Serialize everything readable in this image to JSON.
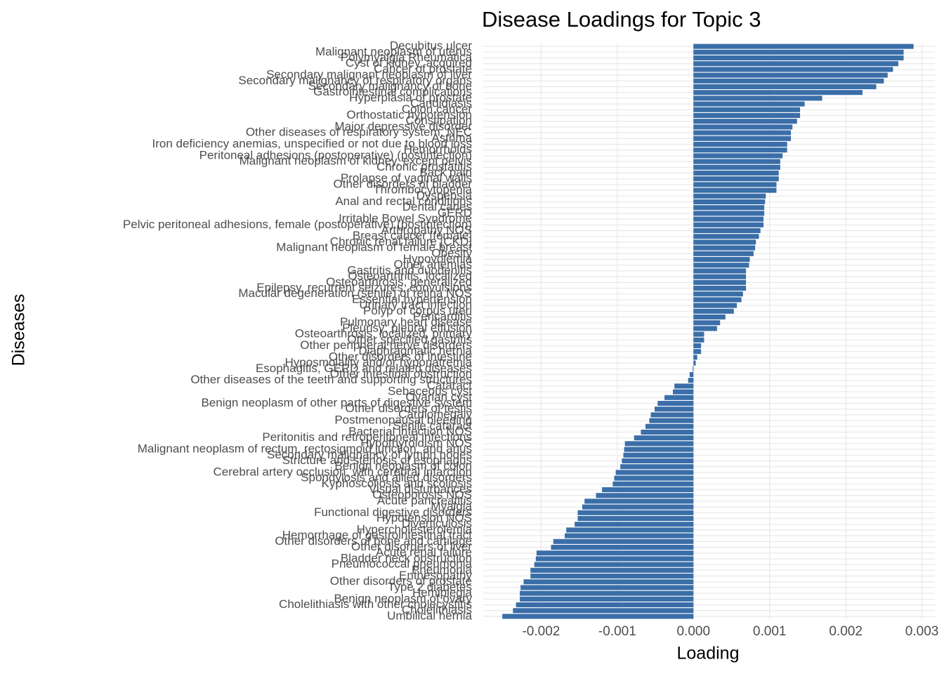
{
  "chart_data": {
    "type": "barh",
    "title": "Disease Loadings for Topic 3",
    "xlabel": "Loading",
    "ylabel": "Diseases",
    "color": "#3b6ea8",
    "grid": true,
    "xlim": [
      -0.00276,
      0.00317
    ],
    "xticks": [
      {
        "value": -0.002,
        "label": "-0.002"
      },
      {
        "value": -0.001,
        "label": "-0.001"
      },
      {
        "value": 0,
        "label": "0.000"
      },
      {
        "value": 0.001,
        "label": "0.001"
      },
      {
        "value": 0.002,
        "label": "0.002"
      },
      {
        "value": 0.003,
        "label": "0.003"
      }
    ],
    "categories": [
      "Decubitus ulcer",
      "Malignant neoplasm of uterus",
      "Polymyalgia Rheumatica",
      "Cyst of kidney, acquired",
      "Cancer of prostate",
      "Secondary malignant neoplasm of liver",
      "Secondary malignancy of respiratory organs",
      "Secondary malignancy of bone",
      "Gastrointestinal complications",
      "Hyperplasia of prostate",
      "Candidiasis",
      "Colon cancer",
      "Orthostatic hypotension",
      "Constipation",
      "Major depressive disorder",
      "Other diseases of respiratory system, NEC",
      "Asthma",
      "Iron deficiency anemias, unspecified or not due to blood loss",
      "Hemorrhoids",
      "Peritoneal adhesions (postoperative) (postinfection)",
      "Malignant neoplasm of kidney, except pelvis",
      "Chronic prostatitis",
      "Back pain",
      "Prolapse of vaginal walls",
      "Other disorders of bladder",
      "Thrombocytopenia",
      "Dyspepsia",
      "Anal and rectal conditions",
      "Dental caries",
      "GERD",
      "Irritable Bowel Syndrome",
      "Pelvic peritoneal adhesions, female (postoperative) (postinfection)",
      "Arthropathy NOS",
      "Breast cancer [female]",
      "Chronic renal failure [CKD]",
      "Malignant neoplasm of female breast",
      "Obesity",
      "Hypovolemia",
      "Other anemias",
      "Gastritis and duodenitis",
      "Osteoarthritis, localized",
      "Osteoarthrosis, generalized",
      "Epilepsy, recurrent seizures, convulsions",
      "Macular degeneration (senile) of retina NOS",
      "Essential hypertension",
      "Urinary tract infection",
      "Polyp of corpus uteri",
      "Pericarditis",
      "Pulmonary heart disease",
      "Pleurisy; pleural effusion",
      "Osteoarthrosis, localized, primary",
      "Other specified gastritis",
      "Other peripheral nerve disorders",
      "Diaphragmatic hernia",
      "Other disorders of intestine",
      "Hyposmolality and/or hyponatremia",
      "Esophagitis, GERD and related diseases",
      "Other intestinal obstruction",
      "Other diseases of the teeth and supporting structures",
      "Cataract",
      "Sebaceous cyst",
      "Ovarian cyst",
      "Benign neoplasm of other parts of digestive system",
      "Other disorders of testis",
      "Cardiomegaly",
      "Postmenopausal bleeding",
      "Senile cataract",
      "Bacterial infection NOS",
      "Peritonitis and retroperitoneal infections",
      "Hypothyroidism NOS",
      "Malignant neoplasm of rectum, rectosigmoid junction, and anus",
      "Secondary malignancy of lymph nodes",
      "Stricture and stenosis of esophagus",
      "Benign neoplasm of colon",
      "Cerebral artery occlusion, with cerebral infarction",
      "Spondylosis and allied disorders",
      "Kyphoscoliosis and scoliosis",
      "Visual disturbances",
      "Osteoporosis NOS",
      "Acute pancreatitis",
      "Myalgia",
      "Functional digestive disorders",
      "Hypotension NOS",
      "Diverticulosis",
      "Hypercholesterolemia",
      "Hemorrhage of gastrointestinal tract",
      "Other disorders of bone and cartilage",
      "Other disorders of liver",
      "Acute renal failure",
      "Bladder neck obstruction",
      "Pneumococcal pneumonia",
      "Pneumonia",
      "Enthesopathy",
      "Other disorders of prostate",
      "Type 2 diabetes",
      "Hemiplegia",
      "Benign neoplasm of ovary",
      "Cholelithiasis with other cholecystitis",
      "Cholelithiasis",
      "Umbilical hernia"
    ],
    "values": [
      0.00289,
      0.00276,
      0.00276,
      0.00269,
      0.00262,
      0.00255,
      0.0025,
      0.0024,
      0.00222,
      0.00169,
      0.00146,
      0.0014,
      0.0014,
      0.00136,
      0.0013,
      0.00128,
      0.00128,
      0.00123,
      0.00123,
      0.00117,
      0.00114,
      0.00114,
      0.00112,
      0.00112,
      0.00109,
      0.00109,
      0.00095,
      0.00094,
      0.00093,
      0.00093,
      0.00092,
      0.00092,
      0.00088,
      0.00086,
      0.00082,
      0.00081,
      0.00079,
      0.00074,
      0.00073,
      0.00069,
      0.00069,
      0.00069,
      0.00069,
      0.00065,
      0.00063,
      0.00057,
      0.00053,
      0.00042,
      0.00035,
      0.00031,
      0.00014,
      0.00014,
      0.0001,
      0.0001,
      5e-05,
      3e-05,
      -1e-05,
      -5e-05,
      -7e-05,
      -0.00025,
      -0.00027,
      -0.00038,
      -0.00047,
      -0.00051,
      -0.00056,
      -0.00058,
      -0.00063,
      -0.00069,
      -0.00078,
      -0.0009,
      -0.00091,
      -0.00092,
      -0.00094,
      -0.00096,
      -0.00102,
      -0.00104,
      -0.00106,
      -0.0012,
      -0.00128,
      -0.00143,
      -0.00146,
      -0.00152,
      -0.00152,
      -0.00156,
      -0.00167,
      -0.00169,
      -0.00184,
      -0.00187,
      -0.00206,
      -0.00207,
      -0.00209,
      -0.00214,
      -0.00214,
      -0.00223,
      -0.00227,
      -0.00228,
      -0.00228,
      -0.00233,
      -0.00237,
      -0.00251
    ]
  }
}
